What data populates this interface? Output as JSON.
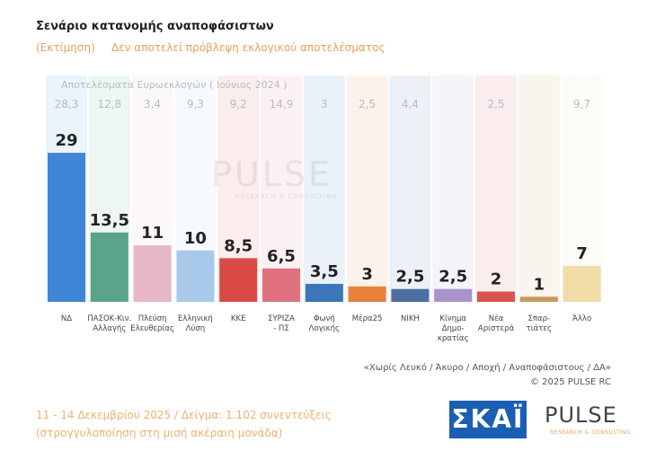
{
  "chart_data": {
    "type": "bar",
    "title": "Σενάριο κατανομής αναποφάσιστων",
    "subtitle_left": "(Εκτίμηση)",
    "subtitle": "Δεν αποτελεί πρόβλεψη εκλογικού αποτελέσματος",
    "categories": [
      "ΝΔ",
      "ΠΑΣΟΚ-Κιν.\nΑλλαγής",
      "Πλεύση\nΕλευθερίας",
      "Ελληνική\nΛύση",
      "ΚΚΕ",
      "ΣΥΡΙΖΑ\n- ΠΣ",
      "Φωνή\nΛογικής",
      "Μέρα25",
      "ΝΙΚΗ",
      "Κίνημα\nΔημο-\nκρατίας",
      "Νέα\nΑριστερά",
      "Σπαρ-\nτιάτες",
      "Άλλο"
    ],
    "series": [
      {
        "values": [
          29,
          13.5,
          11,
          10,
          8.5,
          6.5,
          3.5,
          3,
          2.5,
          2.5,
          2,
          1,
          7
        ],
        "value_labels": [
          "29",
          "13,5",
          "11",
          "10",
          "8,5",
          "6,5",
          "3,5",
          "3",
          "2,5",
          "2,5",
          "2",
          "1",
          "7"
        ],
        "colors": [
          "#3f86d6",
          "#5aa48a",
          "#e6b6c9",
          "#a9c9ea",
          "#d94b44",
          "#e07280",
          "#3a76b8",
          "#e9813a",
          "#4d6fa3",
          "#a892c9",
          "#d9534f",
          "#c89a5a",
          "#f0dca6"
        ]
      },
      {
        "name": "Αποτελέσματα Ευρωεκλογών  ( Ιούνιος 2024 )",
        "values": [
          28.3,
          12.8,
          3.4,
          9.3,
          9.2,
          14.9,
          3,
          2.5,
          4.4,
          null,
          2.5,
          null,
          9.7
        ],
        "value_labels": [
          "28,3",
          "12,8",
          "3,4",
          "9,3",
          "9,2",
          "14,9",
          "3",
          "2,5",
          "4,4",
          null,
          "2,5",
          null,
          "9,7"
        ],
        "color": "#b4bcc8"
      }
    ],
    "watermark": "PULSE",
    "watermark_sub": "RESEARCH & CONSULTING",
    "footnote": "«Χωρίς Λευκό / Άκυρο / Αποχή / Αναποφάσιστους / ΔΑ»",
    "copyright": "©  2025  PULSE RC",
    "fieldwork": "11 - 14 Δεκεμβρίου 2025  /  Δείγμα:  1.102 συνεντεύξεις",
    "rounding_note": "(στρογγυλοποίηση στη μισή ακέραιη μονάδα)",
    "logo_left": "ΣΚΑΪ",
    "logo_right": "PULSE",
    "logo_right_sub": "RESEARCH & CONSULTING"
  }
}
